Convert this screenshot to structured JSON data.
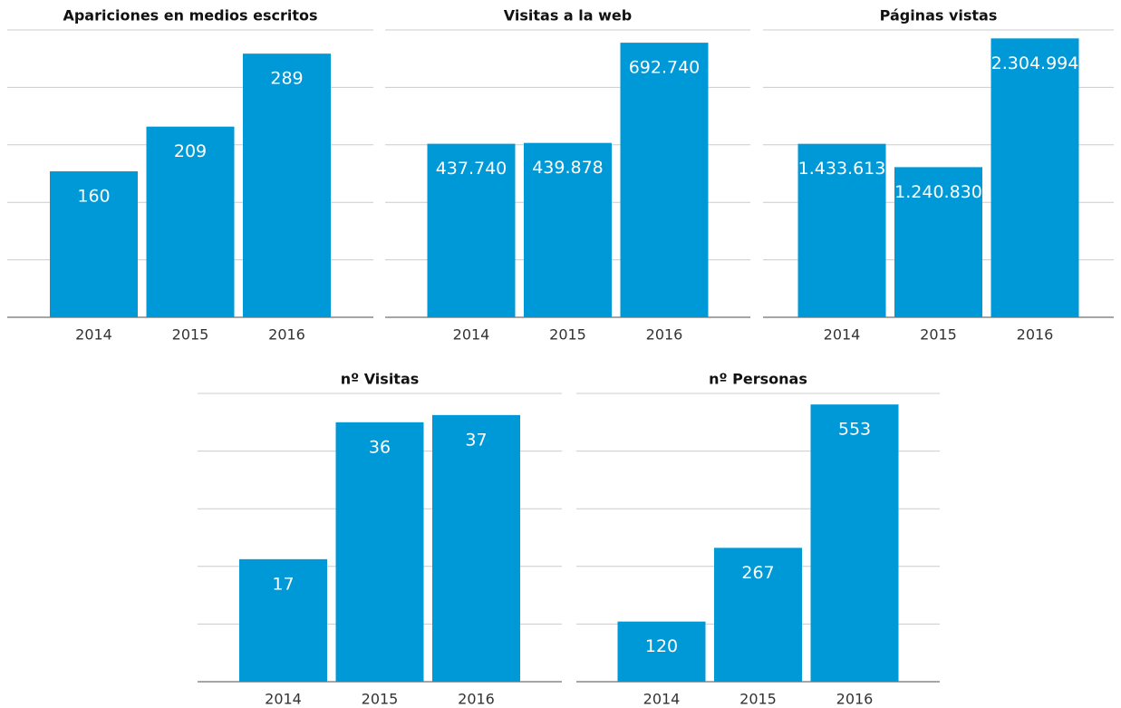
{
  "chart_data": [
    {
      "type": "bar",
      "title": "Apariciones en medios escritos",
      "categories": [
        "2014",
        "2015",
        "2016"
      ],
      "values": [
        160,
        209,
        289
      ],
      "color": "#0099d8",
      "ylim": [
        0,
        315
      ],
      "yticks": [
        0,
        63,
        126,
        189,
        252,
        315
      ],
      "grid": true
    },
    {
      "type": "bar",
      "title": "Visitas a la web",
      "categories": [
        "2014",
        "2015",
        "2016"
      ],
      "values": [
        437740,
        439878,
        692740
      ],
      "value_labels": [
        "437.740",
        "439.878",
        "692.740"
      ],
      "color": "#0099d8",
      "ylim": [
        0,
        725000
      ],
      "yticks": [
        0,
        145000,
        290000,
        435000,
        580000,
        725000
      ],
      "grid": true
    },
    {
      "type": "bar",
      "title": "Páginas vistas",
      "categories": [
        "2014",
        "2015",
        "2016"
      ],
      "values": [
        1433613,
        1240830,
        2304994
      ],
      "value_labels": [
        "1.433.613",
        "1.240.830",
        "2.304.994"
      ],
      "color": "#0099d8",
      "ylim": [
        0,
        2375000
      ],
      "yticks": [
        0,
        475000,
        950000,
        1425000,
        1900000,
        2375000
      ],
      "grid": true
    },
    {
      "type": "bar",
      "title": "nº Visitas",
      "categories": [
        "2014",
        "2015",
        "2016"
      ],
      "values": [
        17,
        36,
        37
      ],
      "color": "#0099d8",
      "ylim": [
        0,
        40
      ],
      "yticks": [
        0,
        8,
        16,
        24,
        32,
        40
      ],
      "grid": true
    },
    {
      "type": "bar",
      "title": "nº Personas",
      "categories": [
        "2014",
        "2015",
        "2016"
      ],
      "values": [
        120,
        267,
        553
      ],
      "color": "#0099d8",
      "ylim": [
        0,
        575
      ],
      "yticks": [
        0,
        115,
        230,
        345,
        460,
        575
      ],
      "grid": true
    }
  ]
}
